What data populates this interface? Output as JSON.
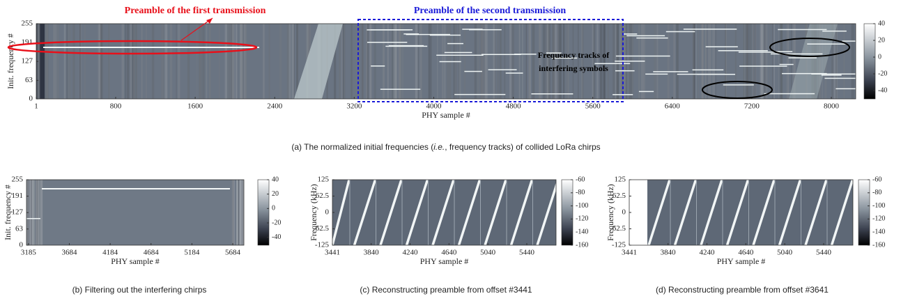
{
  "chart_data": [
    {
      "type": "heatmap",
      "xlabel": "PHY sample #",
      "ylabel": "Init. frequency #",
      "xlim": [
        1,
        8245
      ],
      "xticks": [
        1,
        800,
        1600,
        2400,
        3200,
        4000,
        4800,
        5600,
        6400,
        7200,
        8000
      ],
      "ylim": [
        0,
        255
      ],
      "yticks": [
        0,
        63,
        127,
        191,
        255
      ],
      "clim": [
        -50,
        40
      ],
      "cticks": [
        40,
        20,
        0,
        -20,
        -40
      ],
      "caption": [
        "(a)  The normalized initial frequencies (",
        "i.e.",
        ", frequency tracks) of collided LoRa chirps"
      ],
      "annotations": [
        {
          "text": "Preamble of the first transmission",
          "color": "#e8101a"
        },
        {
          "text": "Preamble of the second transmission",
          "color": "#1a1ad8"
        },
        {
          "text": "Frequency tracks of",
          "color": "#000000"
        },
        {
          "text": "interfering symbols",
          "color": "#000000"
        }
      ]
    },
    {
      "type": "heatmap",
      "xlabel": "PHY sample #",
      "ylabel": "Init. frequency #",
      "xlim": [
        3160,
        5820
      ],
      "xticks": [
        3185,
        3684,
        4184,
        4684,
        5184,
        5684
      ],
      "ylim": [
        0,
        255
      ],
      "yticks": [
        0,
        63,
        127,
        191,
        255
      ],
      "clim": [
        -51,
        40
      ],
      "cticks": [
        40,
        20,
        0,
        -20,
        -40
      ],
      "caption": [
        "(b)  Filtering out the interfering chirps"
      ]
    },
    {
      "type": "heatmap",
      "xlabel": "PHY sample #",
      "ylabel": "Frequency (kHz)",
      "xlim": [
        3441,
        5741
      ],
      "xticks": [
        3441,
        3840,
        4240,
        4640,
        5040,
        5440
      ],
      "ylim": [
        -125,
        125
      ],
      "yticks": [
        -125,
        -62.5,
        0,
        62.5,
        125
      ],
      "clim": [
        -160,
        -60
      ],
      "cticks": [
        -60,
        -80,
        -100,
        -120,
        -140,
        -160
      ],
      "caption": [
        "(c)  Reconstructing preamble from offset #3441"
      ]
    },
    {
      "type": "heatmap",
      "xlabel": "PHY sample #",
      "ylabel": "Frequency (kHz)",
      "xlim": [
        3441,
        5741
      ],
      "xticks": [
        3441,
        3840,
        4240,
        4640,
        5040,
        5440
      ],
      "ylim": [
        -125,
        125
      ],
      "yticks": [
        -125,
        -62.5,
        0,
        62.5,
        125
      ],
      "clim": [
        -160,
        -60
      ],
      "cticks": [
        -60,
        -80,
        -100,
        -120,
        -140,
        -160
      ],
      "caption": [
        "(d)  Reconstructing preamble from offset #3641"
      ]
    }
  ]
}
